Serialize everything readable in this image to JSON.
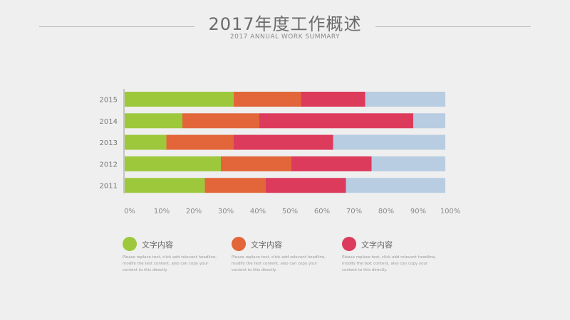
{
  "header": {
    "title": "2017年度工作概述",
    "subtitle": "2017 ANNUAL WORK SUMMARY"
  },
  "chart_data": {
    "type": "bar",
    "orientation": "horizontal",
    "stacked": true,
    "percent": true,
    "categories": [
      "2015",
      "2014",
      "2013",
      "2012",
      "2011"
    ],
    "series": [
      {
        "name": "文字内容",
        "color": "#9dc83c",
        "values": [
          34,
          18,
          13,
          30,
          25
        ]
      },
      {
        "name": "文字内容",
        "color": "#e2663a",
        "values": [
          21,
          24,
          21,
          22,
          19
        ]
      },
      {
        "name": "文字内容",
        "color": "#dc3b5c",
        "values": [
          20,
          48,
          31,
          25,
          25
        ]
      },
      {
        "name": "",
        "color": "#b8cde2",
        "values": [
          25,
          10,
          35,
          23,
          31
        ]
      }
    ],
    "x_ticks": [
      "0%",
      "10%",
      "20%",
      "30%",
      "40%",
      "50%",
      "60%",
      "70%",
      "80%",
      "90%",
      "100%"
    ],
    "xlim": [
      0,
      100
    ],
    "grid": false
  },
  "legend": [
    {
      "label": "文字内容",
      "color": "#9dc83c",
      "desc": "Please replace text, click add relevant headline, modify the text content, also can copy your content to this directly."
    },
    {
      "label": "文字内容",
      "color": "#e2663a",
      "desc": "Please replace text, click add relevant headline, modify the text content, also can copy your content to this directly."
    },
    {
      "label": "文字内容",
      "color": "#dc3b5c",
      "desc": "Please replace text, click add relevant headline, modify the text content, also can copy your content to this directly."
    }
  ]
}
